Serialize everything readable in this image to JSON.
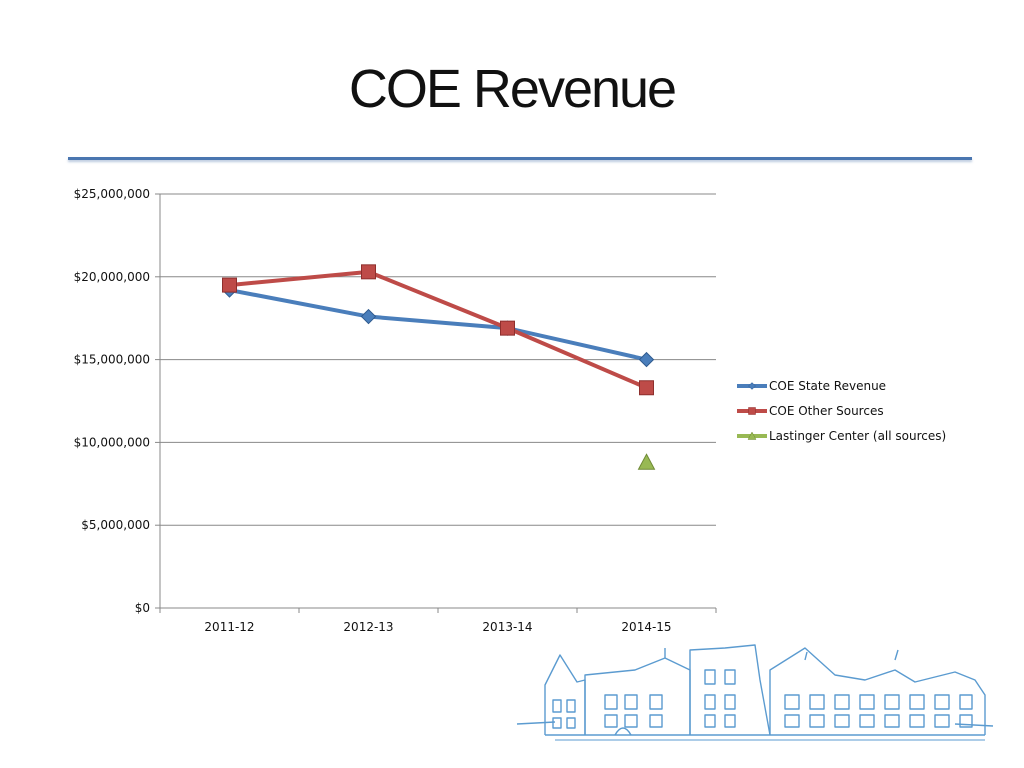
{
  "slide": {
    "title": "COE Revenue"
  },
  "colors": {
    "rule": "#4a76b0",
    "gridline": "#888888",
    "illustration": "#5b9bd0"
  },
  "chart_data": {
    "type": "line",
    "title": "",
    "xlabel": "",
    "ylabel": "",
    "categories": [
      "2011-12",
      "2012-13",
      "2013-14",
      "2014-15"
    ],
    "ylim": [
      0,
      25000000
    ],
    "yticks": [
      0,
      5000000,
      10000000,
      15000000,
      20000000,
      25000000
    ],
    "ytick_labels": [
      "$0",
      "$5,000,000",
      "$10,000,000",
      "$15,000,000",
      "$20,000,000",
      "$25,000,000"
    ],
    "grid": true,
    "legend_position": "right",
    "series": [
      {
        "name": "COE State Revenue",
        "values": [
          19200000,
          17600000,
          16900000,
          15000000
        ],
        "color": "#4a7ebb",
        "marker": "diamond"
      },
      {
        "name": "COE Other Sources",
        "values": [
          19500000,
          20300000,
          16900000,
          13300000
        ],
        "color": "#be4b48",
        "marker": "square"
      },
      {
        "name": "Lastinger Center (all sources)",
        "values": [
          null,
          null,
          null,
          8800000
        ],
        "color": "#98b954",
        "marker": "triangle"
      }
    ]
  }
}
